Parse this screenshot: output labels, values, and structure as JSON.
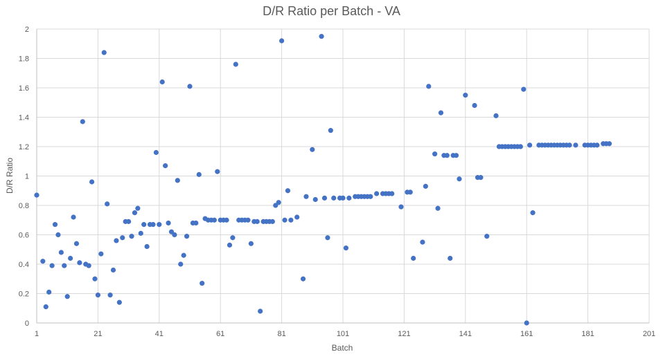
{
  "chart_data": {
    "type": "scatter",
    "title": "D/R Ratio per Batch - VA",
    "xlabel": "Batch",
    "ylabel": "D/R Ratio",
    "xlim": [
      1,
      201
    ],
    "ylim": [
      0,
      2
    ],
    "xticks": [
      1,
      21,
      41,
      61,
      81,
      101,
      121,
      141,
      161,
      181,
      201
    ],
    "yticks": [
      0,
      0.2,
      0.4,
      0.6,
      0.8,
      1,
      1.2,
      1.4,
      1.6,
      1.8,
      2
    ],
    "grid": true,
    "marker_color": "#4472c4",
    "series": [
      {
        "points": [
          [
            1,
            0.87
          ],
          [
            3,
            0.42
          ],
          [
            4,
            0.11
          ],
          [
            5,
            0.21
          ],
          [
            6,
            0.39
          ],
          [
            7,
            0.67
          ],
          [
            8,
            0.6
          ],
          [
            9,
            0.48
          ],
          [
            10,
            0.39
          ],
          [
            11,
            0.18
          ],
          [
            12,
            0.44
          ],
          [
            13,
            0.72
          ],
          [
            14,
            0.54
          ],
          [
            15,
            0.41
          ],
          [
            16,
            1.37
          ],
          [
            17,
            0.4
          ],
          [
            18,
            0.39
          ],
          [
            19,
            0.96
          ],
          [
            20,
            0.3
          ],
          [
            21,
            0.19
          ],
          [
            22,
            0.47
          ],
          [
            23,
            1.84
          ],
          [
            24,
            0.81
          ],
          [
            25,
            0.19
          ],
          [
            26,
            0.36
          ],
          [
            27,
            0.56
          ],
          [
            28,
            0.14
          ],
          [
            29,
            0.58
          ],
          [
            30,
            0.69
          ],
          [
            31,
            0.69
          ],
          [
            32,
            0.59
          ],
          [
            33,
            0.75
          ],
          [
            34,
            0.78
          ],
          [
            35,
            0.61
          ],
          [
            36,
            0.67
          ],
          [
            37,
            0.52
          ],
          [
            38,
            0.67
          ],
          [
            39,
            0.67
          ],
          [
            40,
            1.16
          ],
          [
            41,
            0.67
          ],
          [
            42,
            1.64
          ],
          [
            43,
            1.07
          ],
          [
            44,
            0.68
          ],
          [
            45,
            0.62
          ],
          [
            46,
            0.6
          ],
          [
            47,
            0.97
          ],
          [
            48,
            0.4
          ],
          [
            49,
            0.46
          ],
          [
            50,
            0.59
          ],
          [
            51,
            1.61
          ],
          [
            52,
            0.68
          ],
          [
            53,
            0.68
          ],
          [
            54,
            1.01
          ],
          [
            55,
            0.27
          ],
          [
            56,
            0.71
          ],
          [
            57,
            0.7
          ],
          [
            58,
            0.7
          ],
          [
            59,
            0.7
          ],
          [
            60,
            1.03
          ],
          [
            61,
            0.7
          ],
          [
            62,
            0.7
          ],
          [
            63,
            0.7
          ],
          [
            64,
            0.53
          ],
          [
            65,
            0.58
          ],
          [
            66,
            1.76
          ],
          [
            67,
            0.7
          ],
          [
            68,
            0.7
          ],
          [
            69,
            0.7
          ],
          [
            70,
            0.7
          ],
          [
            71,
            0.54
          ],
          [
            72,
            0.69
          ],
          [
            73,
            0.69
          ],
          [
            74,
            0.08
          ],
          [
            75,
            0.69
          ],
          [
            76,
            0.69
          ],
          [
            77,
            0.69
          ],
          [
            78,
            0.69
          ],
          [
            79,
            0.8
          ],
          [
            80,
            0.82
          ],
          [
            81,
            1.92
          ],
          [
            82,
            0.7
          ],
          [
            83,
            0.9
          ],
          [
            84,
            0.7
          ],
          [
            86,
            0.72
          ],
          [
            88,
            0.3
          ],
          [
            89,
            0.86
          ],
          [
            91,
            1.18
          ],
          [
            92,
            0.84
          ],
          [
            94,
            1.95
          ],
          [
            95,
            0.85
          ],
          [
            96,
            0.58
          ],
          [
            97,
            1.31
          ],
          [
            98,
            0.85
          ],
          [
            100,
            0.85
          ],
          [
            101,
            0.85
          ],
          [
            102,
            0.51
          ],
          [
            103,
            0.85
          ],
          [
            105,
            0.86
          ],
          [
            106,
            0.86
          ],
          [
            107,
            0.86
          ],
          [
            108,
            0.86
          ],
          [
            109,
            0.86
          ],
          [
            110,
            0.86
          ],
          [
            112,
            0.88
          ],
          [
            114,
            0.88
          ],
          [
            115,
            0.88
          ],
          [
            116,
            0.88
          ],
          [
            117,
            0.88
          ],
          [
            120,
            0.79
          ],
          [
            122,
            0.89
          ],
          [
            123,
            0.89
          ],
          [
            124,
            0.44
          ],
          [
            127,
            0.55
          ],
          [
            128,
            0.93
          ],
          [
            129,
            1.61
          ],
          [
            131,
            1.15
          ],
          [
            132,
            0.78
          ],
          [
            133,
            1.43
          ],
          [
            134,
            1.14
          ],
          [
            135,
            1.14
          ],
          [
            136,
            0.44
          ],
          [
            137,
            1.14
          ],
          [
            138,
            1.14
          ],
          [
            139,
            0.98
          ],
          [
            141,
            1.55
          ],
          [
            144,
            1.48
          ],
          [
            145,
            0.99
          ],
          [
            146,
            0.99
          ],
          [
            148,
            0.59
          ],
          [
            151,
            1.41
          ],
          [
            152,
            1.2
          ],
          [
            153,
            1.2
          ],
          [
            154,
            1.2
          ],
          [
            155,
            1.2
          ],
          [
            156,
            1.2
          ],
          [
            157,
            1.2
          ],
          [
            158,
            1.2
          ],
          [
            159,
            1.2
          ],
          [
            160,
            1.59
          ],
          [
            161,
            0.0
          ],
          [
            162,
            1.21
          ],
          [
            163,
            0.75
          ],
          [
            165,
            1.21
          ],
          [
            166,
            1.21
          ],
          [
            167,
            1.21
          ],
          [
            168,
            1.21
          ],
          [
            169,
            1.21
          ],
          [
            170,
            1.21
          ],
          [
            171,
            1.21
          ],
          [
            172,
            1.21
          ],
          [
            173,
            1.21
          ],
          [
            174,
            1.21
          ],
          [
            175,
            1.21
          ],
          [
            177,
            1.21
          ],
          [
            180,
            1.21
          ],
          [
            181,
            1.21
          ],
          [
            182,
            1.21
          ],
          [
            183,
            1.21
          ],
          [
            184,
            1.21
          ],
          [
            186,
            1.22
          ],
          [
            187,
            1.22
          ],
          [
            188,
            1.22
          ]
        ]
      }
    ]
  }
}
